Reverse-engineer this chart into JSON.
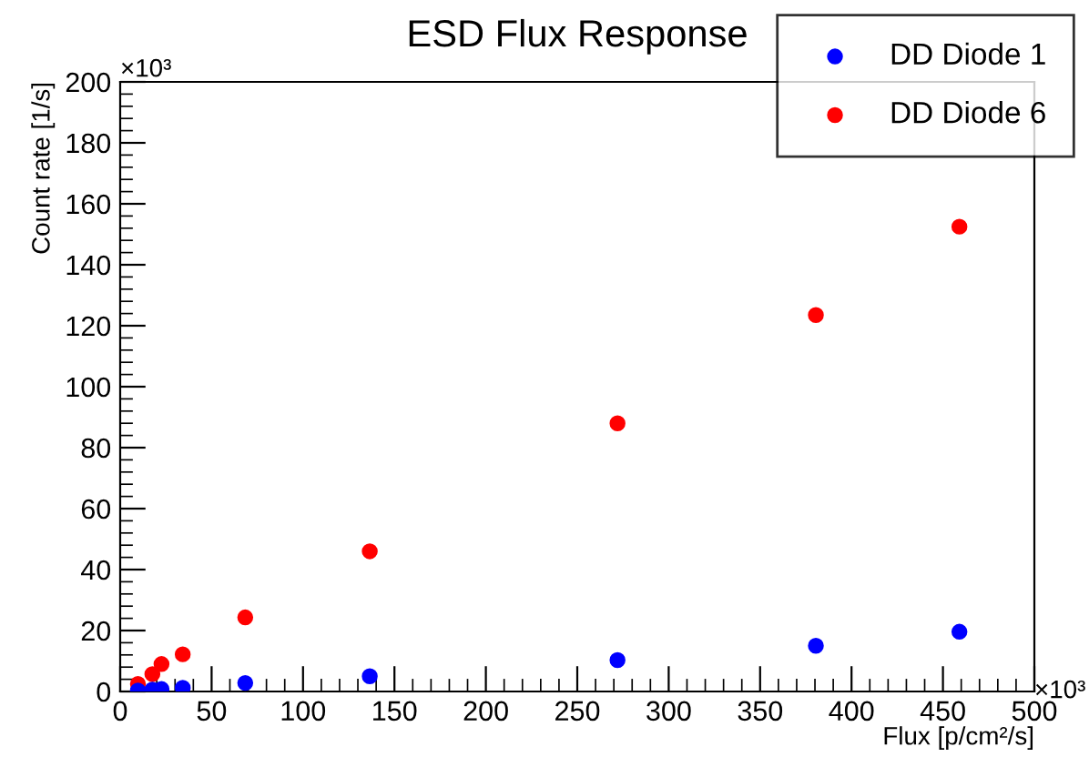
{
  "chart_data": {
    "type": "scatter",
    "title": "ESD Flux Response",
    "xlabel": "Flux [p/cm²/s]",
    "ylabel": "Count rate [1/s]",
    "x": [
      9.7,
      17.6,
      22.6,
      34.2,
      68.4,
      136.5,
      272,
      380.5,
      459
    ],
    "series": [
      {
        "name": "DD Diode 1",
        "color": "#0000ff",
        "values": [
          0.3,
          0.6,
          0.8,
          1.2,
          2.8,
          5,
          10.3,
          15,
          19.6
        ]
      },
      {
        "name": "DD Diode 6",
        "color": "#ff0000",
        "values": [
          2.5,
          5.7,
          9,
          12.2,
          24.3,
          46,
          88,
          123.5,
          152.5
        ]
      }
    ],
    "xlim": [
      0,
      500
    ],
    "ylim": [
      0,
      200
    ],
    "xticks": [
      0,
      50,
      100,
      150,
      200,
      250,
      300,
      350,
      400,
      450,
      500
    ],
    "yticks": [
      0,
      20,
      40,
      60,
      80,
      100,
      120,
      140,
      160,
      180,
      200
    ],
    "annotations": [
      "×10³",
      "×10³"
    ],
    "grid": false,
    "legend": "top right",
    "marker": "circle"
  }
}
